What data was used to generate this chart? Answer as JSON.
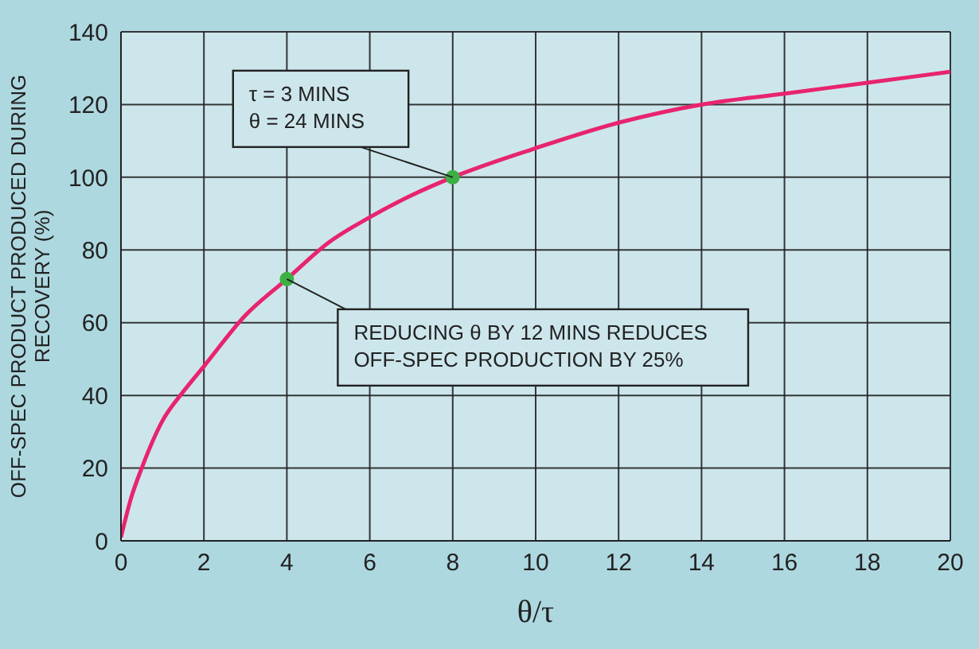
{
  "chart_data": {
    "type": "line",
    "xlabel": "θ/τ",
    "ylabel": "OFF-SPEC PRODUCT PRODUCED DURING RECOVERY (%)",
    "xlim": [
      0,
      20
    ],
    "xticks": [
      0,
      2,
      4,
      6,
      8,
      10,
      12,
      14,
      16,
      18,
      20
    ],
    "ylim": [
      0,
      140
    ],
    "yticks": [
      0,
      20,
      40,
      60,
      80,
      100,
      120,
      140
    ],
    "grid": true,
    "legend": false,
    "series": [
      {
        "color": "#e8246e",
        "marker": "none",
        "x": [
          0,
          0.25,
          0.5,
          1,
          1.5,
          2,
          3,
          4,
          5,
          6,
          7,
          8,
          10,
          12,
          14,
          16,
          18,
          20
        ],
        "values": [
          1,
          12,
          20,
          33,
          41,
          48,
          62,
          72,
          82,
          89,
          95,
          100,
          108,
          115,
          120,
          123,
          126,
          129
        ]
      },
      {
        "type": "scatter",
        "color": "#3cb043",
        "marker": "circle",
        "x": [
          4,
          8
        ],
        "values": [
          72,
          100
        ]
      }
    ],
    "annotations": [
      {
        "text": "τ = 3 MINS\nθ = 24 MINS",
        "x": 8,
        "y": 100
      },
      {
        "text": "REDUCING θ BY 12 MINS REDUCES\nOFF-SPEC PRODUCTION BY 25%",
        "x": 4,
        "y": 72
      }
    ]
  }
}
